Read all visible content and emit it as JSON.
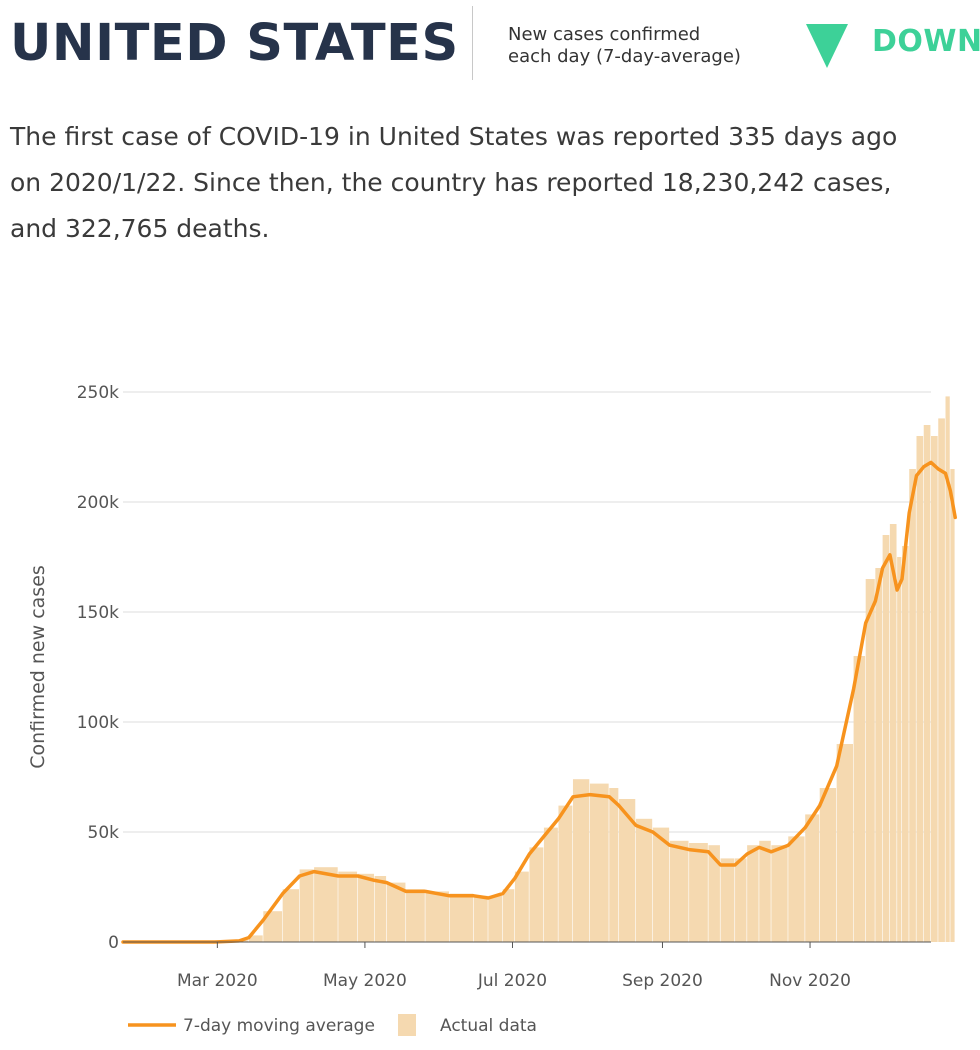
{
  "header": {
    "country": "UNITED STATES",
    "metric_line1": "New cases confirmed",
    "metric_line2": "each day (7-day-average)",
    "trend": "DOWN",
    "trend_icon": "down-triangle-icon",
    "trend_color": "#3dd198"
  },
  "summary": {
    "line1": "The first case of COVID-19 in United States was reported 335 days ago",
    "line2": "on 2020/1/22. Since then, the country has reported 18,230,242 cases,",
    "line3": "and 322,765 deaths."
  },
  "chart_data": {
    "type": "line",
    "ylabel": "Confirmed new cases",
    "ylim": [
      0,
      250000
    ],
    "yticks": [
      0,
      50000,
      100000,
      150000,
      200000,
      250000
    ],
    "ytick_labels": [
      "0",
      "50k",
      "100k",
      "150k",
      "200k",
      "250k"
    ],
    "xrange": [
      "2020-01-22",
      "2020-12-21"
    ],
    "xticks": [
      "2020-03-01",
      "2020-05-01",
      "2020-07-01",
      "2020-09-01",
      "2020-11-01"
    ],
    "xtick_labels": [
      "Mar 2020",
      "May 2020",
      "Jul 2020",
      "Sep 2020",
      "Nov 2020"
    ],
    "grid": true,
    "legend_position": "bottom-left",
    "colors": {
      "average": "#f7931e",
      "actual": "#f5d9b0"
    },
    "series": [
      {
        "name": "7-day moving average",
        "style": "line",
        "points": [
          [
            "2020-01-22",
            0
          ],
          [
            "2020-02-29",
            0
          ],
          [
            "2020-03-10",
            500
          ],
          [
            "2020-03-14",
            2000
          ],
          [
            "2020-03-20",
            10000
          ],
          [
            "2020-03-28",
            22000
          ],
          [
            "2020-04-04",
            30000
          ],
          [
            "2020-04-10",
            32000
          ],
          [
            "2020-04-20",
            30000
          ],
          [
            "2020-04-28",
            30000
          ],
          [
            "2020-05-05",
            28000
          ],
          [
            "2020-05-10",
            27000
          ],
          [
            "2020-05-18",
            23000
          ],
          [
            "2020-05-26",
            23000
          ],
          [
            "2020-06-05",
            21000
          ],
          [
            "2020-06-15",
            21000
          ],
          [
            "2020-06-21",
            20000
          ],
          [
            "2020-06-27",
            22000
          ],
          [
            "2020-07-02",
            29000
          ],
          [
            "2020-07-08",
            40000
          ],
          [
            "2020-07-14",
            48000
          ],
          [
            "2020-07-20",
            56000
          ],
          [
            "2020-07-26",
            66000
          ],
          [
            "2020-08-02",
            67000
          ],
          [
            "2020-08-10",
            66000
          ],
          [
            "2020-08-14",
            62000
          ],
          [
            "2020-08-21",
            53000
          ],
          [
            "2020-08-28",
            50000
          ],
          [
            "2020-09-04",
            44000
          ],
          [
            "2020-09-12",
            42000
          ],
          [
            "2020-09-20",
            41000
          ],
          [
            "2020-09-25",
            35000
          ],
          [
            "2020-10-01",
            35000
          ],
          [
            "2020-10-06",
            40000
          ],
          [
            "2020-10-11",
            43000
          ],
          [
            "2020-10-16",
            41000
          ],
          [
            "2020-10-23",
            44000
          ],
          [
            "2020-10-30",
            52000
          ],
          [
            "2020-11-05",
            62000
          ],
          [
            "2020-11-12",
            80000
          ],
          [
            "2020-11-19",
            115000
          ],
          [
            "2020-11-24",
            145000
          ],
          [
            "2020-11-28",
            155000
          ],
          [
            "2020-12-01",
            170000
          ],
          [
            "2020-12-04",
            176000
          ],
          [
            "2020-12-07",
            160000
          ],
          [
            "2020-12-09",
            165000
          ],
          [
            "2020-12-12",
            195000
          ],
          [
            "2020-12-15",
            212000
          ],
          [
            "2020-12-18",
            216000
          ],
          [
            "2020-12-21",
            218000
          ],
          [
            "2020-12-24",
            215000
          ],
          [
            "2020-12-27",
            213000
          ],
          [
            "2020-12-29",
            205000
          ],
          [
            "2020-12-31",
            193000
          ]
        ]
      },
      {
        "name": "Actual data",
        "style": "bar",
        "points": [
          [
            "2020-01-22",
            0
          ],
          [
            "2020-02-29",
            0
          ],
          [
            "2020-03-10",
            800
          ],
          [
            "2020-03-14",
            3000
          ],
          [
            "2020-03-20",
            14000
          ],
          [
            "2020-03-28",
            24000
          ],
          [
            "2020-04-04",
            33000
          ],
          [
            "2020-04-10",
            34000
          ],
          [
            "2020-04-20",
            32000
          ],
          [
            "2020-04-28",
            31000
          ],
          [
            "2020-05-05",
            30000
          ],
          [
            "2020-05-10",
            27000
          ],
          [
            "2020-05-18",
            24000
          ],
          [
            "2020-05-26",
            23000
          ],
          [
            "2020-06-05",
            22000
          ],
          [
            "2020-06-15",
            21000
          ],
          [
            "2020-06-21",
            21000
          ],
          [
            "2020-06-27",
            24000
          ],
          [
            "2020-07-02",
            32000
          ],
          [
            "2020-07-08",
            43000
          ],
          [
            "2020-07-14",
            52000
          ],
          [
            "2020-07-20",
            62000
          ],
          [
            "2020-07-26",
            74000
          ],
          [
            "2020-08-02",
            72000
          ],
          [
            "2020-08-10",
            70000
          ],
          [
            "2020-08-14",
            65000
          ],
          [
            "2020-08-21",
            56000
          ],
          [
            "2020-08-28",
            52000
          ],
          [
            "2020-09-04",
            46000
          ],
          [
            "2020-09-12",
            45000
          ],
          [
            "2020-09-20",
            44000
          ],
          [
            "2020-09-25",
            38000
          ],
          [
            "2020-10-01",
            38000
          ],
          [
            "2020-10-06",
            44000
          ],
          [
            "2020-10-11",
            46000
          ],
          [
            "2020-10-16",
            44000
          ],
          [
            "2020-10-23",
            48000
          ],
          [
            "2020-10-30",
            58000
          ],
          [
            "2020-11-05",
            70000
          ],
          [
            "2020-11-12",
            90000
          ],
          [
            "2020-11-19",
            130000
          ],
          [
            "2020-11-24",
            165000
          ],
          [
            "2020-11-28",
            170000
          ],
          [
            "2020-12-01",
            185000
          ],
          [
            "2020-12-04",
            190000
          ],
          [
            "2020-12-07",
            175000
          ],
          [
            "2020-12-09",
            180000
          ],
          [
            "2020-12-12",
            215000
          ],
          [
            "2020-12-15",
            230000
          ],
          [
            "2020-12-18",
            235000
          ],
          [
            "2020-12-21",
            230000
          ],
          [
            "2020-12-24",
            238000
          ],
          [
            "2020-12-27",
            248000
          ],
          [
            "2020-12-29",
            215000
          ],
          [
            "2020-12-31",
            205000
          ]
        ]
      }
    ]
  }
}
